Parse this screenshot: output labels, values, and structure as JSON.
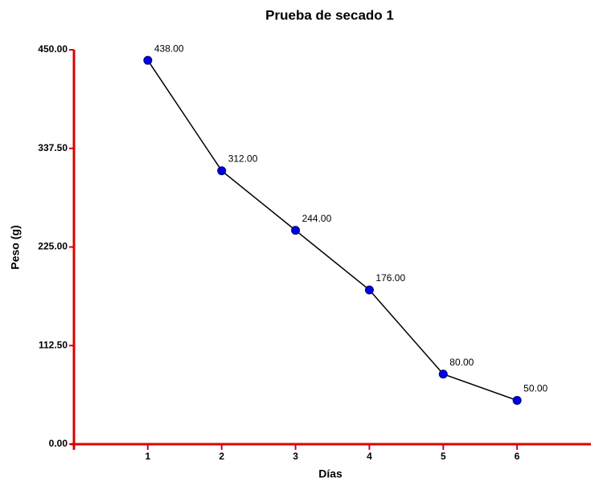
{
  "chart_data": {
    "type": "line",
    "title": "Prueba de secado 1",
    "x_label": "Días",
    "y_label": "Peso  (g)",
    "x": [
      1,
      2,
      3,
      4,
      5,
      6
    ],
    "values": [
      438,
      312,
      244,
      176,
      80,
      50
    ],
    "value_labels": [
      "438.00",
      "312.00",
      "244.00",
      "176.00",
      "80.00",
      "50.00"
    ],
    "color": "#0000ee",
    "line_color": "#000000",
    "axis_color": "#dd0000",
    "xlim": [
      0,
      7
    ],
    "xticks": [
      1,
      2,
      3,
      4,
      5,
      6
    ],
    "ylim": [
      0,
      450
    ],
    "yticks": [
      {
        "value": 0,
        "label": "0.00"
      },
      {
        "value": 112.5,
        "label": "112.50"
      },
      {
        "value": 225,
        "label": "225.00"
      },
      {
        "value": 337.5,
        "label": "337.50"
      },
      {
        "value": 450,
        "label": "450.00"
      }
    ]
  }
}
